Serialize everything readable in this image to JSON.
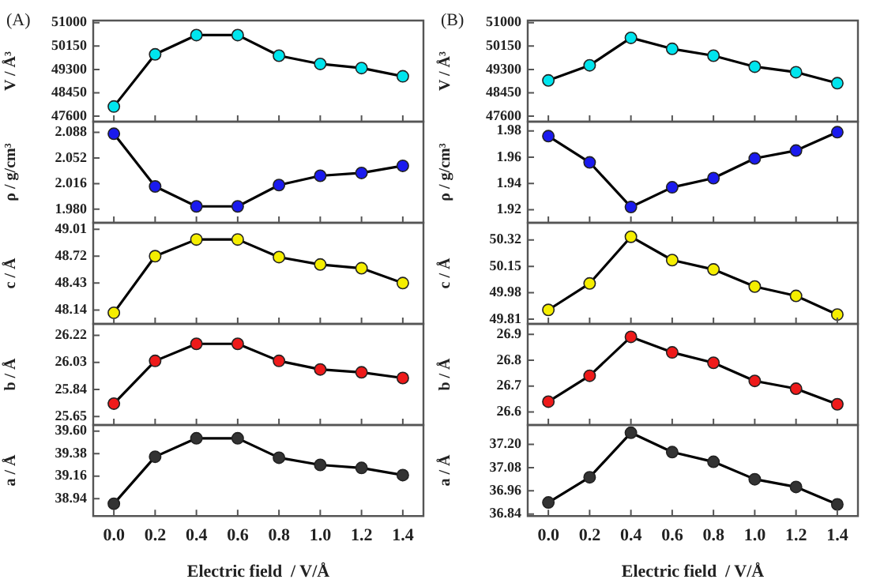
{
  "chart_data": [
    {
      "type": "line",
      "title": "(A)",
      "ylabel": "V / Å³",
      "x": [
        0,
        0.2,
        0.4,
        0.6,
        0.8,
        1.0,
        1.2,
        1.4
      ],
      "xlim": [
        -0.1,
        1.5
      ],
      "xticks": [
        {
          "value": 0,
          "label": null
        },
        {
          "value": 0.2,
          "label": null
        },
        {
          "value": 0.4,
          "label": null
        },
        {
          "value": 0.6,
          "label": null
        },
        {
          "value": 0.8,
          "label": null
        },
        {
          "value": 1.0,
          "label": null
        },
        {
          "value": 1.2,
          "label": null
        },
        {
          "value": 1.4,
          "label": null
        }
      ],
      "ylim": [
        47400,
        51080
      ],
      "yticks": [
        47600,
        48450,
        49300,
        50150,
        51000
      ],
      "tick_labels": "y",
      "marker": "circle",
      "series": [
        {
          "color": "#000000",
          "colors": [
            "#00e5ee",
            "#00e5ee",
            "#00e5ee",
            "#00e5ee",
            "#00e5ee",
            "#00e5ee",
            "#00e5ee",
            "#00e5ee"
          ],
          "values": [
            47950,
            49850,
            50550,
            50550,
            49800,
            49500,
            49350,
            49050
          ]
        }
      ]
    },
    {
      "type": "line",
      "ylabel": "ρ / g/cm³",
      "x": [
        0,
        0.2,
        0.4,
        0.6,
        0.8,
        1.0,
        1.2,
        1.4
      ],
      "xlim": [
        -0.1,
        1.5
      ],
      "xticks": [
        {
          "value": 0,
          "label": null
        },
        {
          "value": 0.2,
          "label": null
        },
        {
          "value": 0.4,
          "label": null
        },
        {
          "value": 0.6,
          "label": null
        },
        {
          "value": 0.8,
          "label": null
        },
        {
          "value": 1.0,
          "label": null
        },
        {
          "value": 1.2,
          "label": null
        },
        {
          "value": 1.4,
          "label": null
        }
      ],
      "ylim": [
        1.961,
        2.103
      ],
      "yticks": [
        {
          "value": 1.98,
          "label": "1.980"
        },
        2.016,
        2.052,
        2.088
      ],
      "tick_labels": "y",
      "marker": "circle",
      "series": [
        {
          "color": "#000000",
          "colors": [
            "#1a1aee",
            "#1a1aee",
            "#1a1aee",
            "#1a1aee",
            "#1a1aee",
            "#1a1aee",
            "#1a1aee",
            "#1a1aee"
          ],
          "values": [
            2.086,
            2.012,
            1.984,
            1.984,
            2.014,
            2.027,
            2.031,
            2.041
          ]
        }
      ]
    },
    {
      "type": "line",
      "ylabel": "c / Å",
      "x": [
        0,
        0.2,
        0.4,
        0.6,
        0.8,
        1.0,
        1.2,
        1.4
      ],
      "xlim": [
        -0.1,
        1.5
      ],
      "xticks": [
        {
          "value": 0,
          "label": null
        },
        {
          "value": 0.2,
          "label": null
        },
        {
          "value": 0.4,
          "label": null
        },
        {
          "value": 0.6,
          "label": null
        },
        {
          "value": 0.8,
          "label": null
        },
        {
          "value": 1.0,
          "label": null
        },
        {
          "value": 1.2,
          "label": null
        },
        {
          "value": 1.4,
          "label": null
        }
      ],
      "ylim": [
        47.99,
        49.08
      ],
      "yticks": [
        48.14,
        48.43,
        48.72,
        49.01
      ],
      "tick_labels": "y",
      "marker": "circle",
      "series": [
        {
          "color": "#000000",
          "colors": [
            "#f5ee00",
            "#f5ee00",
            "#f5ee00",
            "#f5ee00",
            "#f5ee00",
            "#f5ee00",
            "#f5ee00",
            "#f5ee00"
          ],
          "values": [
            48.11,
            48.72,
            48.9,
            48.9,
            48.71,
            48.63,
            48.59,
            48.43
          ]
        }
      ]
    },
    {
      "type": "line",
      "ylabel": "b / Å",
      "x": [
        0,
        0.2,
        0.4,
        0.6,
        0.8,
        1.0,
        1.2,
        1.4
      ],
      "xlim": [
        -0.1,
        1.5
      ],
      "xticks": [
        {
          "value": 0,
          "label": null
        },
        {
          "value": 0.2,
          "label": null
        },
        {
          "value": 0.4,
          "label": null
        },
        {
          "value": 0.6,
          "label": null
        },
        {
          "value": 0.8,
          "label": null
        },
        {
          "value": 1.0,
          "label": null
        },
        {
          "value": 1.2,
          "label": null
        },
        {
          "value": 1.4,
          "label": null
        }
      ],
      "ylim": [
        25.59,
        26.3
      ],
      "yticks": [
        25.65,
        25.84,
        26.03,
        26.22
      ],
      "tick_labels": "y",
      "marker": "circle",
      "series": [
        {
          "color": "#000000",
          "colors": [
            "#ee1a1a",
            "#ee1a1a",
            "#ee1a1a",
            "#ee1a1a",
            "#ee1a1a",
            "#ee1a1a",
            "#ee1a1a",
            "#ee1a1a"
          ],
          "values": [
            25.74,
            26.04,
            26.16,
            26.16,
            26.04,
            25.98,
            25.96,
            25.92
          ]
        }
      ]
    },
    {
      "type": "line",
      "ylabel": "a / Å",
      "xlabel": "Electric field  / V/Å",
      "x": [
        0,
        0.2,
        0.4,
        0.6,
        0.8,
        1.0,
        1.2,
        1.4
      ],
      "xlim": [
        -0.1,
        1.5
      ],
      "xticks": [
        {
          "value": 0,
          "label": "0.0"
        },
        {
          "value": 0.2,
          "label": "0.2"
        },
        {
          "value": 0.4,
          "label": "0.4"
        },
        {
          "value": 0.6,
          "label": "0.6"
        },
        {
          "value": 0.8,
          "label": "0.8"
        },
        {
          "value": 1.0,
          "label": "1.0"
        },
        {
          "value": 1.2,
          "label": "1.2"
        },
        {
          "value": 1.4,
          "label": "1.4"
        }
      ],
      "ylim": [
        38.77,
        39.66
      ],
      "yticks": [
        38.94,
        39.16,
        39.38,
        {
          "value": 39.6,
          "label": "39.60"
        }
      ],
      "marker": "circle",
      "series": [
        {
          "color": "#000000",
          "colors": [
            "#333333",
            "#333333",
            "#333333",
            "#333333",
            "#333333",
            "#333333",
            "#333333",
            "#333333"
          ],
          "values": [
            38.89,
            39.35,
            39.53,
            39.53,
            39.34,
            39.27,
            39.24,
            39.17
          ]
        }
      ]
    },
    {
      "type": "line",
      "title": "(B)",
      "ylabel": "V / Å³",
      "x": [
        0,
        0.2,
        0.4,
        0.6,
        0.8,
        1.0,
        1.2,
        1.4
      ],
      "xlim": [
        -0.1,
        1.5
      ],
      "xticks": [
        {
          "value": 0,
          "label": null
        },
        {
          "value": 0.2,
          "label": null
        },
        {
          "value": 0.4,
          "label": null
        },
        {
          "value": 0.6,
          "label": null
        },
        {
          "value": 0.8,
          "label": null
        },
        {
          "value": 1.0,
          "label": null
        },
        {
          "value": 1.2,
          "label": null
        },
        {
          "value": 1.4,
          "label": null
        }
      ],
      "ylim": [
        47400,
        51080
      ],
      "yticks": [
        47600,
        48450,
        49300,
        50150,
        51000
      ],
      "tick_labels": "y",
      "marker": "circle",
      "series": [
        {
          "color": "#000000",
          "colors": [
            "#00e5ee",
            "#00e5ee",
            "#00e5ee",
            "#00e5ee",
            "#00e5ee",
            "#00e5ee",
            "#00e5ee",
            "#00e5ee"
          ],
          "values": [
            48900,
            49450,
            50450,
            50050,
            49800,
            49400,
            49200,
            48800
          ]
        }
      ]
    },
    {
      "type": "line",
      "ylabel": "ρ / g/cm³",
      "x": [
        0,
        0.2,
        0.4,
        0.6,
        0.8,
        1.0,
        1.2,
        1.4
      ],
      "xlim": [
        -0.1,
        1.5
      ],
      "xticks": [
        {
          "value": 0,
          "label": null
        },
        {
          "value": 0.2,
          "label": null
        },
        {
          "value": 0.4,
          "label": null
        },
        {
          "value": 0.6,
          "label": null
        },
        {
          "value": 0.8,
          "label": null
        },
        {
          "value": 1.0,
          "label": null
        },
        {
          "value": 1.2,
          "label": null
        },
        {
          "value": 1.4,
          "label": null
        }
      ],
      "ylim": [
        1.91,
        1.987
      ],
      "yticks": [
        1.92,
        1.94,
        1.96,
        1.98
      ],
      "tick_labels": "y",
      "marker": "circle",
      "series": [
        {
          "color": "#000000",
          "colors": [
            "#1a1aee",
            "#1a1aee",
            "#1a1aee",
            "#1a1aee",
            "#1a1aee",
            "#1a1aee",
            "#1a1aee",
            "#1a1aee"
          ],
          "values": [
            1.976,
            1.956,
            1.922,
            1.937,
            1.944,
            1.959,
            1.965,
            1.979
          ]
        }
      ]
    },
    {
      "type": "line",
      "ylabel": "c / Å",
      "x": [
        0,
        0.2,
        0.4,
        0.6,
        0.8,
        1.0,
        1.2,
        1.4
      ],
      "xlim": [
        -0.1,
        1.5
      ],
      "xticks": [
        {
          "value": 0,
          "label": null
        },
        {
          "value": 0.2,
          "label": null
        },
        {
          "value": 0.4,
          "label": null
        },
        {
          "value": 0.6,
          "label": null
        },
        {
          "value": 0.8,
          "label": null
        },
        {
          "value": 1.0,
          "label": null
        },
        {
          "value": 1.2,
          "label": null
        },
        {
          "value": 1.4,
          "label": null
        }
      ],
      "ylim": [
        49.78,
        50.43
      ],
      "yticks": [
        49.81,
        49.98,
        50.15,
        50.32
      ],
      "tick_labels": "y",
      "marker": "circle",
      "series": [
        {
          "color": "#000000",
          "colors": [
            "#f5ee00",
            "#f5ee00",
            "#f5ee00",
            "#f5ee00",
            "#f5ee00",
            "#f5ee00",
            "#f5ee00",
            "#f5ee00"
          ],
          "values": [
            49.87,
            50.04,
            50.34,
            50.19,
            50.13,
            50.02,
            49.96,
            49.84
          ]
        }
      ]
    },
    {
      "type": "line",
      "ylabel": "b / Å",
      "x": [
        0,
        0.2,
        0.4,
        0.6,
        0.8,
        1.0,
        1.2,
        1.4
      ],
      "xlim": [
        -0.1,
        1.5
      ],
      "xticks": [
        {
          "value": 0,
          "label": null
        },
        {
          "value": 0.2,
          "label": null
        },
        {
          "value": 0.4,
          "label": null
        },
        {
          "value": 0.6,
          "label": null
        },
        {
          "value": 0.8,
          "label": null
        },
        {
          "value": 1.0,
          "label": null
        },
        {
          "value": 1.2,
          "label": null
        },
        {
          "value": 1.4,
          "label": null
        }
      ],
      "ylim": [
        26.55,
        26.94
      ],
      "yticks": [
        26.6,
        26.7,
        26.8,
        26.9
      ],
      "tick_labels": "y",
      "marker": "circle",
      "series": [
        {
          "color": "#000000",
          "colors": [
            "#ee1a1a",
            "#ee1a1a",
            "#ee1a1a",
            "#ee1a1a",
            "#ee1a1a",
            "#ee1a1a",
            "#ee1a1a",
            "#ee1a1a"
          ],
          "values": [
            26.64,
            26.74,
            26.89,
            26.83,
            26.79,
            26.72,
            26.69,
            26.63
          ]
        }
      ]
    },
    {
      "type": "line",
      "ylabel": "a / Å",
      "xlabel": "Electric field  / V/Å",
      "x": [
        0,
        0.2,
        0.4,
        0.6,
        0.8,
        1.0,
        1.2,
        1.4
      ],
      "xlim": [
        -0.1,
        1.5
      ],
      "xticks": [
        {
          "value": 0,
          "label": "0.0"
        },
        {
          "value": 0.2,
          "label": "0.2"
        },
        {
          "value": 0.4,
          "label": "0.4"
        },
        {
          "value": 0.6,
          "label": "0.6"
        },
        {
          "value": 0.8,
          "label": "0.8"
        },
        {
          "value": 1.0,
          "label": "1.0"
        },
        {
          "value": 1.2,
          "label": "1.2"
        },
        {
          "value": 1.4,
          "label": "1.4"
        }
      ],
      "ylim": [
        36.83,
        37.3
      ],
      "yticks": [
        36.84,
        36.96,
        37.08,
        {
          "value": 37.2,
          "label": "37.20"
        }
      ],
      "marker": "circle",
      "series": [
        {
          "color": "#000000",
          "colors": [
            "#333333",
            "#333333",
            "#333333",
            "#333333",
            "#333333",
            "#333333",
            "#333333",
            "#333333"
          ],
          "values": [
            36.9,
            37.03,
            37.26,
            37.16,
            37.11,
            37.02,
            36.98,
            36.89
          ]
        }
      ]
    }
  ]
}
